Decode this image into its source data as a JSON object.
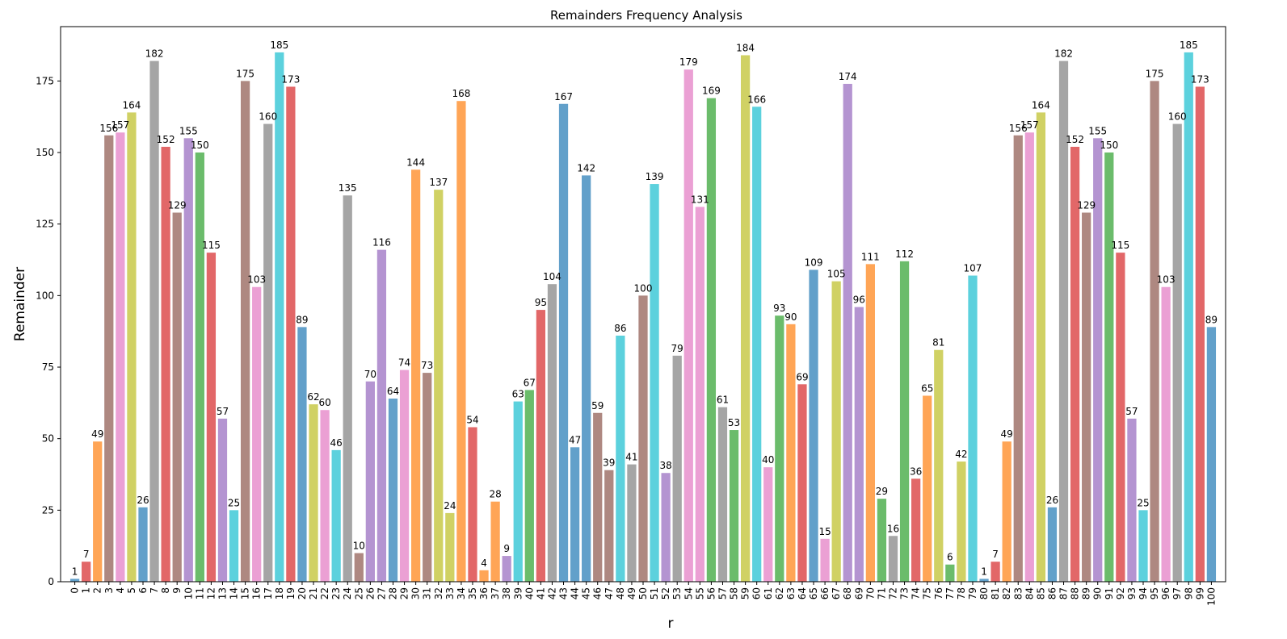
{
  "chart_data": {
    "type": "bar",
    "title": "Remainders Frequency Analysis",
    "xlabel": "r",
    "ylabel": "Remainder",
    "ylim": [
      0,
      194
    ],
    "y_ticks": [
      0,
      25,
      50,
      75,
      100,
      125,
      150,
      175
    ],
    "grid": false,
    "x": [
      0,
      1,
      2,
      3,
      4,
      5,
      6,
      7,
      8,
      9,
      10,
      11,
      12,
      13,
      14,
      15,
      16,
      17,
      18,
      19,
      20,
      21,
      22,
      23,
      24,
      25,
      26,
      27,
      28,
      29,
      30,
      31,
      32,
      33,
      34,
      35,
      36,
      37,
      38,
      39,
      40,
      41,
      42,
      43,
      44,
      45,
      46,
      47,
      48,
      49,
      50,
      51,
      52,
      53,
      54,
      55,
      56,
      57,
      58,
      59,
      60,
      61,
      62,
      63,
      64,
      65,
      66,
      67,
      68,
      69,
      70,
      71,
      72,
      73,
      74,
      75,
      76,
      77,
      78,
      79,
      80,
      81,
      82,
      83,
      84,
      85,
      86,
      87,
      88,
      89,
      90,
      91,
      92,
      93,
      94,
      95,
      96,
      97,
      98,
      99,
      100
    ],
    "values": [
      1,
      7,
      49,
      156,
      157,
      164,
      26,
      182,
      152,
      129,
      155,
      150,
      115,
      57,
      25,
      175,
      103,
      160,
      185,
      173,
      89,
      62,
      60,
      46,
      135,
      10,
      70,
      116,
      64,
      74,
      144,
      73,
      137,
      24,
      168,
      54,
      4,
      28,
      9,
      63,
      67,
      95,
      104,
      167,
      47,
      142,
      59,
      39,
      86,
      41,
      100,
      139,
      38,
      79,
      179,
      131,
      169,
      61,
      53,
      184,
      166,
      40,
      93,
      90,
      69,
      109,
      15,
      105,
      174,
      96,
      111,
      29,
      16,
      112,
      36,
      65,
      81,
      6,
      42,
      107,
      1,
      7,
      49,
      156,
      157,
      164,
      26,
      182,
      152,
      129,
      155,
      150,
      115,
      57,
      25,
      175,
      103,
      160,
      185,
      173,
      89
    ],
    "colors": [
      "#1f77b4",
      "#d62728",
      "#ff7f0e",
      "#8c564b",
      "#e377c2",
      "#bcbd22",
      "#1f77b4",
      "#7f7f7f",
      "#d62728",
      "#8c564b",
      "#9467bd",
      "#2ca02c",
      "#d62728",
      "#9467bd",
      "#17becf",
      "#8c564b",
      "#e377c2",
      "#7f7f7f",
      "#17becf",
      "#d62728",
      "#1f77b4",
      "#bcbd22",
      "#e377c2",
      "#17becf",
      "#7f7f7f",
      "#8c564b",
      "#9467bd",
      "#9467bd",
      "#1f77b4",
      "#e377c2",
      "#ff7f0e",
      "#8c564b",
      "#bcbd22",
      "#bcbd22",
      "#ff7f0e",
      "#d62728",
      "#ff7f0e",
      "#ff7f0e",
      "#9467bd",
      "#17becf",
      "#2ca02c",
      "#d62728",
      "#7f7f7f",
      "#1f77b4",
      "#1f77b4",
      "#1f77b4",
      "#8c564b",
      "#8c564b",
      "#17becf",
      "#7f7f7f",
      "#8c564b",
      "#17becf",
      "#9467bd",
      "#7f7f7f",
      "#e377c2",
      "#e377c2",
      "#2ca02c",
      "#7f7f7f",
      "#2ca02c",
      "#bcbd22",
      "#17becf",
      "#e377c2",
      "#2ca02c",
      "#ff7f0e",
      "#d62728",
      "#1f77b4",
      "#e377c2",
      "#bcbd22",
      "#9467bd",
      "#9467bd",
      "#ff7f0e",
      "#2ca02c",
      "#7f7f7f",
      "#2ca02c",
      "#d62728",
      "#ff7f0e",
      "#bcbd22",
      "#2ca02c",
      "#bcbd22",
      "#17becf",
      "#1f77b4",
      "#d62728",
      "#ff7f0e",
      "#8c564b",
      "#e377c2",
      "#bcbd22",
      "#1f77b4",
      "#7f7f7f",
      "#d62728",
      "#8c564b",
      "#9467bd",
      "#2ca02c",
      "#d62728",
      "#9467bd",
      "#17becf",
      "#8c564b",
      "#e377c2",
      "#7f7f7f",
      "#17becf",
      "#d62728",
      "#1f77b4"
    ],
    "bar_alpha": 0.7
  }
}
